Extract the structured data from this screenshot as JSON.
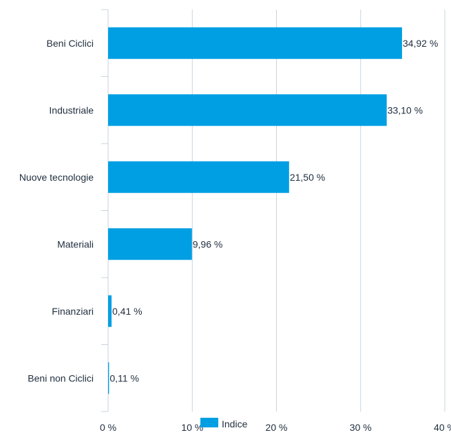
{
  "chart_data": {
    "type": "bar",
    "orientation": "horizontal",
    "categories": [
      "Beni Ciclici",
      "Industriale",
      "Nuove tecnologie",
      "Materiali",
      "Finanziari",
      "Beni non Ciclici"
    ],
    "series": [
      {
        "name": "Indice",
        "values": [
          34.92,
          33.1,
          21.5,
          9.96,
          0.41,
          0.11
        ],
        "labels": [
          "34,92 %",
          "33,10 %",
          "21,50 %",
          "9,96 %",
          "0,41 %",
          "0,11 %"
        ],
        "color": "#009fe3"
      }
    ],
    "xlim": [
      0,
      40
    ],
    "x_ticks": [
      0,
      10,
      20,
      30,
      40
    ],
    "x_tick_labels": [
      "0 %",
      "10 %",
      "20 %",
      "30 %",
      "40 %"
    ],
    "grid": "vertical",
    "legend": "bottom-center",
    "gridline_color": "#c9d3df"
  }
}
